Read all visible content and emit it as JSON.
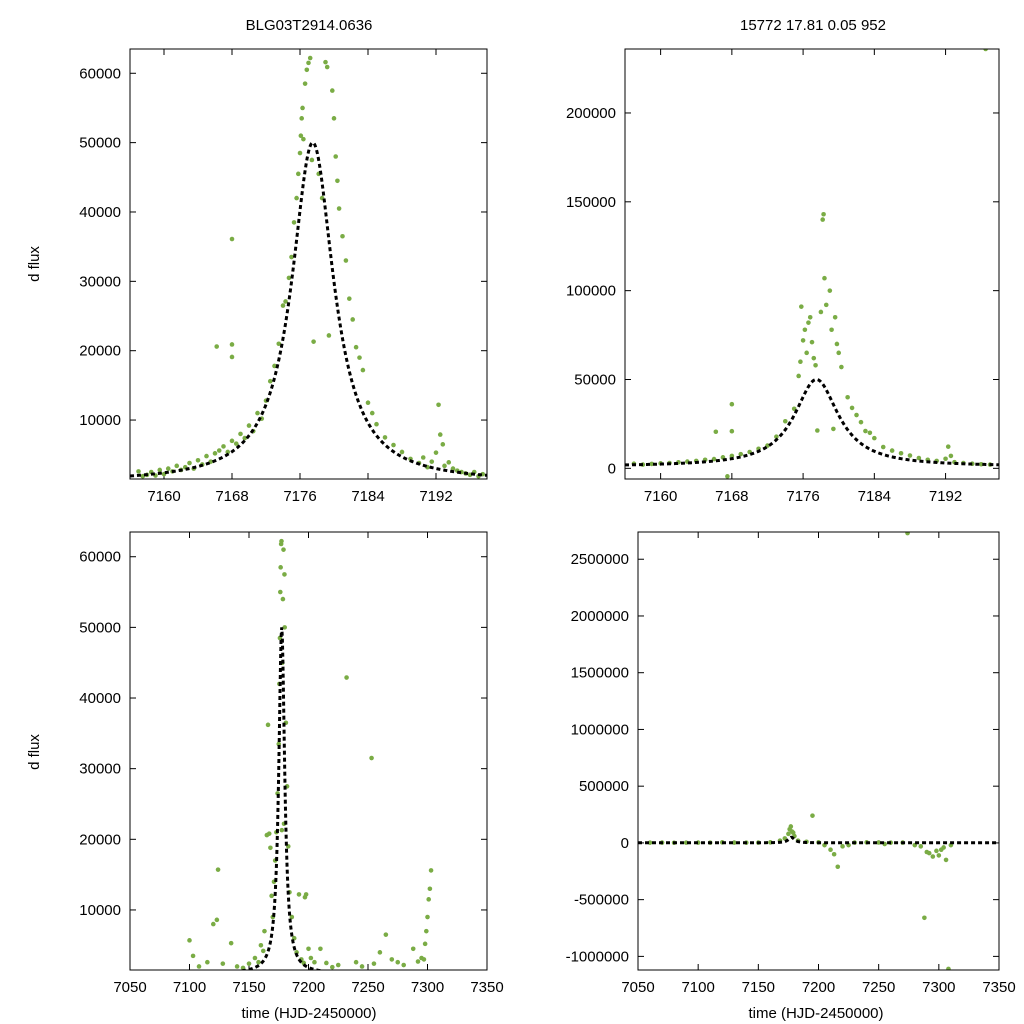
{
  "figure": {
    "title_left": "BLG03T2914.0636",
    "title_right": "15772  17.81  0.05  952",
    "ylabel": "d flux",
    "xlabel": "time (HJD-2450000)"
  },
  "colors": {
    "points": "#7aac45",
    "model": "#000000",
    "axes": "#000000"
  },
  "chart_data": [
    {
      "id": "top-left",
      "type": "scatter",
      "xlim": [
        7156,
        7198
      ],
      "ylim": [
        1500,
        63500
      ],
      "xticks": [
        7160,
        7168,
        7176,
        7184,
        7192
      ],
      "yticks": [
        10000,
        20000,
        30000,
        40000,
        50000,
        60000
      ],
      "ylabel": "d flux",
      "xlabel": "",
      "model": {
        "t0": 7177.5,
        "fmax": 49000,
        "base": 1000,
        "w": 3.0
      },
      "points": [
        [
          7157,
          2600
        ],
        [
          7157.5,
          1900
        ],
        [
          7158,
          2100
        ],
        [
          7158.5,
          2500
        ],
        [
          7159,
          2000
        ],
        [
          7159.5,
          2800
        ],
        [
          7160,
          2200
        ],
        [
          7160.5,
          3000
        ],
        [
          7161,
          2600
        ],
        [
          7161.5,
          3400
        ],
        [
          7162,
          2800
        ],
        [
          7162.5,
          3200
        ],
        [
          7163,
          3800
        ],
        [
          7163.5,
          3000
        ],
        [
          7164,
          4200
        ],
        [
          7164.5,
          3600
        ],
        [
          7165,
          4800
        ],
        [
          7165.5,
          4000
        ],
        [
          7166,
          5200
        ],
        [
          7166.2,
          20600
        ],
        [
          7166.5,
          5600
        ],
        [
          7167,
          6200
        ],
        [
          7167.5,
          5400
        ],
        [
          7168,
          7000
        ],
        [
          7168,
          36100
        ],
        [
          7168,
          20900
        ],
        [
          7168,
          19100
        ],
        [
          7168.5,
          6600
        ],
        [
          7169,
          8000
        ],
        [
          7169.5,
          7400
        ],
        [
          7170,
          9200
        ],
        [
          7170.5,
          8400
        ],
        [
          7171,
          11000
        ],
        [
          7171.5,
          10200
        ],
        [
          7172,
          12800
        ],
        [
          7172.5,
          15600
        ],
        [
          7173,
          17800
        ],
        [
          7173.5,
          21000
        ],
        [
          7174,
          26500
        ],
        [
          7174.3,
          27100
        ],
        [
          7174.7,
          30500
        ],
        [
          7175,
          33500
        ],
        [
          7175.3,
          38500
        ],
        [
          7175.6,
          42000
        ],
        [
          7175.8,
          45500
        ],
        [
          7176,
          48500
        ],
        [
          7176.1,
          51000
        ],
        [
          7176.2,
          53500
        ],
        [
          7176.3,
          55000
        ],
        [
          7176.4,
          50500
        ],
        [
          7176.6,
          58500
        ],
        [
          7176.8,
          60500
        ],
        [
          7177,
          61500
        ],
        [
          7177.2,
          62200
        ],
        [
          7177.4,
          47500
        ],
        [
          7177.6,
          21300
        ],
        [
          7178.2,
          45500
        ],
        [
          7178.6,
          42000
        ],
        [
          7179,
          61600
        ],
        [
          7179.2,
          60900
        ],
        [
          7179.4,
          22200
        ],
        [
          7179.8,
          57500
        ],
        [
          7180,
          53500
        ],
        [
          7180.2,
          48000
        ],
        [
          7180.4,
          44500
        ],
        [
          7180.6,
          40500
        ],
        [
          7181,
          36500
        ],
        [
          7181.4,
          33000
        ],
        [
          7181.8,
          27500
        ],
        [
          7182.2,
          24500
        ],
        [
          7182.6,
          20500
        ],
        [
          7183,
          19000
        ],
        [
          7183.4,
          17200
        ],
        [
          7184,
          12500
        ],
        [
          7184.5,
          11000
        ],
        [
          7185,
          9400
        ],
        [
          7186,
          7500
        ],
        [
          7187,
          6400
        ],
        [
          7188,
          5400
        ],
        [
          7189,
          4400
        ],
        [
          7190,
          3800
        ],
        [
          7190.5,
          4600
        ],
        [
          7191,
          3200
        ],
        [
          7191.5,
          4000
        ],
        [
          7192,
          5300
        ],
        [
          7192.3,
          12200
        ],
        [
          7192.5,
          7900
        ],
        [
          7192.8,
          6500
        ],
        [
          7193,
          3400
        ],
        [
          7193.5,
          3900
        ],
        [
          7194,
          3000
        ],
        [
          7194.5,
          2700
        ],
        [
          7195,
          2500
        ],
        [
          7195.5,
          2300
        ],
        [
          7196,
          2100
        ],
        [
          7196.5,
          2500
        ],
        [
          7197,
          1900
        ],
        [
          7197.5,
          2200
        ]
      ]
    },
    {
      "id": "top-right",
      "type": "scatter",
      "xlim": [
        7156,
        7198
      ],
      "ylim": [
        -6000,
        236000
      ],
      "xticks": [
        7160,
        7168,
        7176,
        7184,
        7192
      ],
      "yticks": [
        0,
        50000,
        100000,
        150000,
        200000
      ],
      "ylabel": "",
      "xlabel": "",
      "model": {
        "t0": 7177.5,
        "fmax": 49000,
        "base": 1000,
        "w": 3.0
      },
      "points": [
        [
          7157,
          2600
        ],
        [
          7158,
          2100
        ],
        [
          7159,
          2500
        ],
        [
          7160,
          2800
        ],
        [
          7161,
          3000
        ],
        [
          7162,
          3400
        ],
        [
          7163,
          3800
        ],
        [
          7164,
          4200
        ],
        [
          7165,
          4800
        ],
        [
          7166,
          5200
        ],
        [
          7166.2,
          20600
        ],
        [
          7167,
          6200
        ],
        [
          7167.5,
          -4500
        ],
        [
          7168,
          36100
        ],
        [
          7168,
          20900
        ],
        [
          7168,
          7000
        ],
        [
          7169,
          8000
        ],
        [
          7170,
          9200
        ],
        [
          7171,
          11000
        ],
        [
          7172,
          12800
        ],
        [
          7173,
          17800
        ],
        [
          7174,
          26500
        ],
        [
          7175,
          33500
        ],
        [
          7175.5,
          52000
        ],
        [
          7175.7,
          60000
        ],
        [
          7175.8,
          91000
        ],
        [
          7176,
          72000
        ],
        [
          7176.2,
          78000
        ],
        [
          7176.4,
          65000
        ],
        [
          7176.6,
          82000
        ],
        [
          7176.8,
          85000
        ],
        [
          7177,
          71000
        ],
        [
          7177.2,
          62000
        ],
        [
          7177.4,
          58000
        ],
        [
          7177.6,
          21300
        ],
        [
          7178,
          88000
        ],
        [
          7178.2,
          140000
        ],
        [
          7178.3,
          143000
        ],
        [
          7178.4,
          107000
        ],
        [
          7178.6,
          92000
        ],
        [
          7179,
          100000
        ],
        [
          7179.2,
          78000
        ],
        [
          7179.4,
          22200
        ],
        [
          7179.6,
          85000
        ],
        [
          7179.8,
          70000
        ],
        [
          7180,
          65000
        ],
        [
          7180.3,
          57000
        ],
        [
          7181,
          40000
        ],
        [
          7181.5,
          34000
        ],
        [
          7182,
          30000
        ],
        [
          7182.5,
          26000
        ],
        [
          7183,
          21000
        ],
        [
          7183.5,
          20000
        ],
        [
          7184,
          17000
        ],
        [
          7185,
          12000
        ],
        [
          7186,
          10000
        ],
        [
          7187,
          8500
        ],
        [
          7188,
          7200
        ],
        [
          7189,
          5800
        ],
        [
          7190,
          4800
        ],
        [
          7191,
          4200
        ],
        [
          7192,
          5400
        ],
        [
          7192.3,
          12200
        ],
        [
          7192.6,
          7000
        ],
        [
          7193,
          3500
        ],
        [
          7194,
          3000
        ],
        [
          7195,
          2600
        ],
        [
          7196,
          2300
        ],
        [
          7197,
          2100
        ],
        [
          7196.5,
          236000
        ]
      ]
    },
    {
      "id": "bottom-left",
      "type": "scatter",
      "xlim": [
        7050,
        7350
      ],
      "ylim": [
        1500,
        63500
      ],
      "xticks": [
        7050,
        7100,
        7150,
        7200,
        7250,
        7300,
        7350
      ],
      "yticks": [
        10000,
        20000,
        30000,
        40000,
        50000,
        60000
      ],
      "ylabel": "d flux",
      "xlabel": "time (HJD-2450000)",
      "model": {
        "t0": 7177.5,
        "fmax": 49000,
        "base": 1000,
        "w": 3.0
      },
      "points": [
        [
          7100,
          5700
        ],
        [
          7103,
          3500
        ],
        [
          7108,
          2000
        ],
        [
          7115,
          2600
        ],
        [
          7120,
          8000
        ],
        [
          7123,
          8600
        ],
        [
          7124,
          15700
        ],
        [
          7128,
          2400
        ],
        [
          7135,
          5300
        ],
        [
          7140,
          2000
        ],
        [
          7145,
          1800
        ],
        [
          7150,
          2400
        ],
        [
          7155,
          3200
        ],
        [
          7158,
          2600
        ],
        [
          7160,
          5000
        ],
        [
          7162,
          4200
        ],
        [
          7163,
          7000
        ],
        [
          7165,
          20600
        ],
        [
          7166,
          36200
        ],
        [
          7167,
          20800
        ],
        [
          7168,
          18800
        ],
        [
          7169,
          12000
        ],
        [
          7170,
          9000
        ],
        [
          7171,
          14000
        ],
        [
          7172,
          17000
        ],
        [
          7173,
          21000
        ],
        [
          7174,
          26500
        ],
        [
          7175,
          33500
        ],
        [
          7175.5,
          42000
        ],
        [
          7176,
          48500
        ],
        [
          7176.3,
          55000
        ],
        [
          7176.6,
          58500
        ],
        [
          7177,
          61800
        ],
        [
          7177.3,
          62200
        ],
        [
          7177.6,
          21300
        ],
        [
          7178,
          45000
        ],
        [
          7178.5,
          54000
        ],
        [
          7179,
          61000
        ],
        [
          7179.4,
          22200
        ],
        [
          7179.8,
          57500
        ],
        [
          7180,
          50000
        ],
        [
          7181,
          36500
        ],
        [
          7182,
          27500
        ],
        [
          7183,
          19000
        ],
        [
          7184,
          12500
        ],
        [
          7186,
          9000
        ],
        [
          7188,
          6000
        ],
        [
          7190,
          4000
        ],
        [
          7192,
          12200
        ],
        [
          7194,
          3000
        ],
        [
          7196,
          2500
        ],
        [
          7197,
          11800
        ],
        [
          7198,
          12200
        ],
        [
          7200,
          4500
        ],
        [
          7202,
          3200
        ],
        [
          7205,
          2600
        ],
        [
          7210,
          4500
        ],
        [
          7215,
          2500
        ],
        [
          7220,
          1900
        ],
        [
          7225,
          2200
        ],
        [
          7232,
          42900
        ],
        [
          7240,
          2600
        ],
        [
          7245,
          2000
        ],
        [
          7253,
          31500
        ],
        [
          7255,
          2400
        ],
        [
          7260,
          4000
        ],
        [
          7265,
          6500
        ],
        [
          7270,
          3000
        ],
        [
          7275,
          2600
        ],
        [
          7280,
          2200
        ],
        [
          7288,
          4500
        ],
        [
          7292,
          2700
        ],
        [
          7295,
          3200
        ],
        [
          7297,
          3000
        ],
        [
          7298,
          5200
        ],
        [
          7299,
          7000
        ],
        [
          7300,
          9000
        ],
        [
          7301,
          11500
        ],
        [
          7302,
          13000
        ],
        [
          7303,
          15600
        ]
      ]
    },
    {
      "id": "bottom-right",
      "type": "scatter",
      "xlim": [
        7050,
        7350
      ],
      "ylim": [
        -1120000,
        2740000
      ],
      "xticks": [
        7050,
        7100,
        7150,
        7200,
        7250,
        7300,
        7350
      ],
      "yticks": [
        -1000000,
        -500000,
        0,
        500000,
        1000000,
        1500000,
        2000000,
        2500000
      ],
      "ylabel": "",
      "xlabel": "time (HJD-2450000)",
      "model": {
        "t0": 7177.5,
        "fmax": 49000,
        "base": 1000,
        "w": 3.0
      },
      "points": [
        [
          7060,
          2000
        ],
        [
          7070,
          3000
        ],
        [
          7080,
          1500
        ],
        [
          7090,
          2500
        ],
        [
          7100,
          3000
        ],
        [
          7110,
          2000
        ],
        [
          7120,
          5000
        ],
        [
          7130,
          3000
        ],
        [
          7140,
          2000
        ],
        [
          7150,
          3000
        ],
        [
          7160,
          5000
        ],
        [
          7168,
          20000
        ],
        [
          7172,
          40000
        ],
        [
          7175,
          80000
        ],
        [
          7176,
          120000
        ],
        [
          7177,
          145000
        ],
        [
          7178,
          100000
        ],
        [
          7179,
          90000
        ],
        [
          7180,
          60000
        ],
        [
          7183,
          20000
        ],
        [
          7190,
          10000
        ],
        [
          7195,
          240000
        ],
        [
          7200,
          5000
        ],
        [
          7205,
          -20000
        ],
        [
          7210,
          -60000
        ],
        [
          7213,
          -100000
        ],
        [
          7216,
          -210000
        ],
        [
          7220,
          -30000
        ],
        [
          7225,
          -20000
        ],
        [
          7230,
          3000
        ],
        [
          7240,
          5000
        ],
        [
          7250,
          4000
        ],
        [
          7255,
          -10000
        ],
        [
          7260,
          2000
        ],
        [
          7270,
          3000
        ],
        [
          7274,
          2730000
        ],
        [
          7280,
          -20000
        ],
        [
          7285,
          -30000
        ],
        [
          7288,
          -660000
        ],
        [
          7290,
          -80000
        ],
        [
          7292,
          -90000
        ],
        [
          7295,
          -120000
        ],
        [
          7298,
          -70000
        ],
        [
          7300,
          -110000
        ],
        [
          7302,
          -60000
        ],
        [
          7304,
          -40000
        ],
        [
          7306,
          -150000
        ],
        [
          7308,
          -1110000
        ],
        [
          7310,
          -20000
        ]
      ]
    }
  ]
}
